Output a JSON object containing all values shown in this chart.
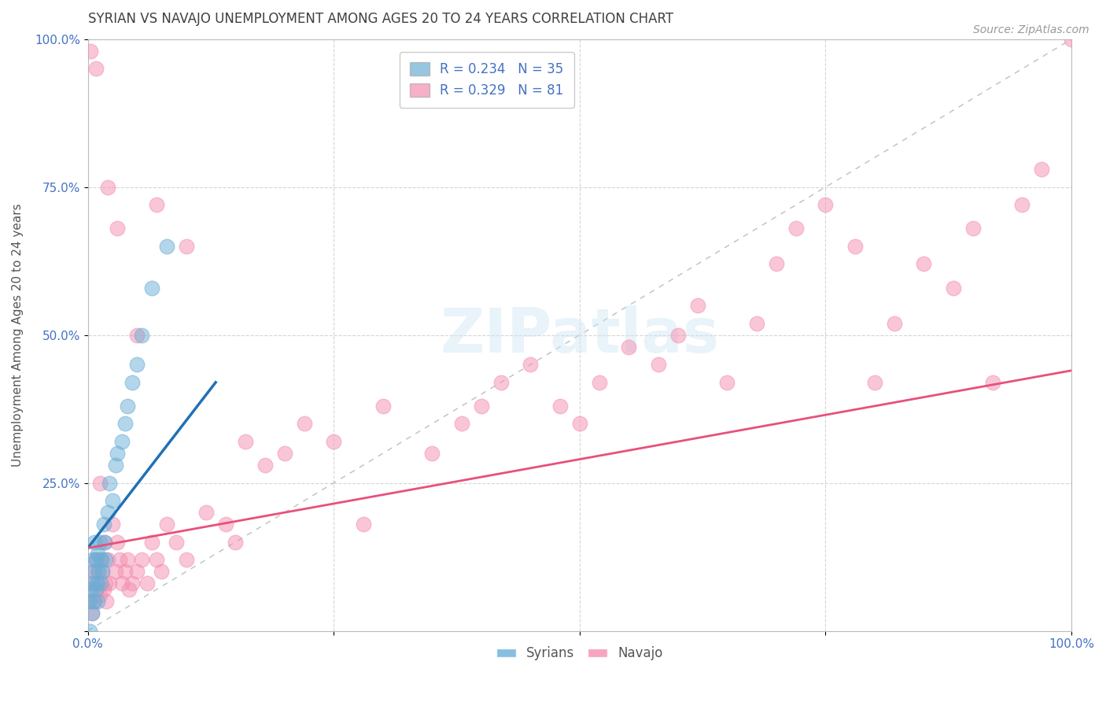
{
  "title": "SYRIAN VS NAVAJO UNEMPLOYMENT AMONG AGES 20 TO 24 YEARS CORRELATION CHART",
  "source": "Source: ZipAtlas.com",
  "ylabel": "Unemployment Among Ages 20 to 24 years",
  "xlim": [
    0.0,
    1.0
  ],
  "ylim": [
    0.0,
    1.0
  ],
  "legend": [
    {
      "label": "Syrians",
      "color": "#a8c8f5",
      "R": 0.234,
      "N": 35
    },
    {
      "label": "Navajo",
      "color": "#f5a0b8",
      "R": 0.329,
      "N": 81
    }
  ],
  "syrian_x": [
    0.001,
    0.002,
    0.003,
    0.004,
    0.005,
    0.005,
    0.006,
    0.007,
    0.007,
    0.008,
    0.008,
    0.009,
    0.01,
    0.01,
    0.011,
    0.012,
    0.013,
    0.014,
    0.015,
    0.016,
    0.017,
    0.018,
    0.02,
    0.022,
    0.025,
    0.028,
    0.03,
    0.035,
    0.038,
    0.04,
    0.045,
    0.05,
    0.055,
    0.065,
    0.08
  ],
  "syrian_y": [
    0.05,
    0.0,
    0.07,
    0.03,
    0.08,
    0.12,
    0.05,
    0.1,
    0.15,
    0.07,
    0.12,
    0.08,
    0.13,
    0.05,
    0.1,
    0.15,
    0.08,
    0.12,
    0.1,
    0.18,
    0.15,
    0.12,
    0.2,
    0.25,
    0.22,
    0.28,
    0.3,
    0.32,
    0.35,
    0.38,
    0.42,
    0.45,
    0.5,
    0.58,
    0.65
  ],
  "navajo_x": [
    0.002,
    0.004,
    0.005,
    0.006,
    0.007,
    0.008,
    0.009,
    0.01,
    0.011,
    0.012,
    0.013,
    0.015,
    0.016,
    0.017,
    0.018,
    0.019,
    0.02,
    0.022,
    0.025,
    0.028,
    0.03,
    0.032,
    0.035,
    0.038,
    0.04,
    0.042,
    0.045,
    0.05,
    0.055,
    0.06,
    0.065,
    0.07,
    0.075,
    0.08,
    0.09,
    0.1,
    0.12,
    0.14,
    0.15,
    0.16,
    0.18,
    0.2,
    0.22,
    0.25,
    0.28,
    0.3,
    0.35,
    0.38,
    0.4,
    0.42,
    0.45,
    0.48,
    0.5,
    0.52,
    0.55,
    0.58,
    0.6,
    0.62,
    0.65,
    0.68,
    0.7,
    0.72,
    0.75,
    0.78,
    0.8,
    0.82,
    0.85,
    0.88,
    0.9,
    0.92,
    0.95,
    0.97,
    1.0,
    0.003,
    0.008,
    0.012,
    0.02,
    0.03,
    0.05,
    0.07,
    0.1
  ],
  "navajo_y": [
    0.05,
    0.03,
    0.08,
    0.1,
    0.05,
    0.12,
    0.07,
    0.08,
    0.1,
    0.06,
    0.12,
    0.1,
    0.07,
    0.15,
    0.08,
    0.05,
    0.12,
    0.08,
    0.18,
    0.1,
    0.15,
    0.12,
    0.08,
    0.1,
    0.12,
    0.07,
    0.08,
    0.1,
    0.12,
    0.08,
    0.15,
    0.12,
    0.1,
    0.18,
    0.15,
    0.12,
    0.2,
    0.18,
    0.15,
    0.32,
    0.28,
    0.3,
    0.35,
    0.32,
    0.18,
    0.38,
    0.3,
    0.35,
    0.38,
    0.42,
    0.45,
    0.38,
    0.35,
    0.42,
    0.48,
    0.45,
    0.5,
    0.55,
    0.42,
    0.52,
    0.62,
    0.68,
    0.72,
    0.65,
    0.42,
    0.52,
    0.62,
    0.58,
    0.68,
    0.42,
    0.72,
    0.78,
    1.0,
    0.98,
    0.95,
    0.25,
    0.75,
    0.68,
    0.5,
    0.72,
    0.65
  ],
  "syrian_line_x": [
    0.0,
    0.13
  ],
  "syrian_line_y": [
    0.14,
    0.42
  ],
  "navajo_line_x": [
    0.0,
    1.0
  ],
  "navajo_line_y": [
    0.14,
    0.44
  ],
  "title_fontsize": 12,
  "source_fontsize": 10,
  "axis_label_fontsize": 11,
  "tick_fontsize": 11,
  "legend_fontsize": 12,
  "scatter_size": 180,
  "scatter_alpha": 0.5,
  "scatter_linewidth": 1.0,
  "syrian_color": "#6baed6",
  "navajo_color": "#f48fb1",
  "syrian_line_color": "#2171b5",
  "navajo_line_color": "#e8507a",
  "diagonal_color": "#b8b8b8",
  "background_color": "#ffffff",
  "grid_color": "#cccccc",
  "tick_color": "#4472c4",
  "title_color": "#404040"
}
